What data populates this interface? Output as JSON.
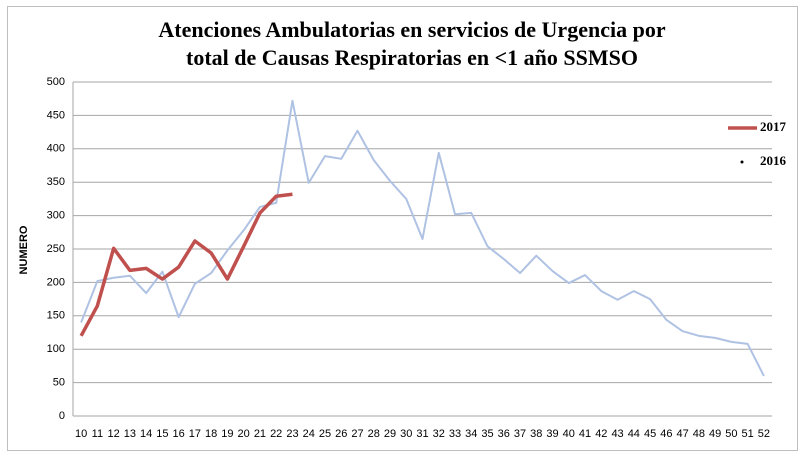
{
  "chart_data": {
    "type": "line",
    "title": [
      "Atenciones Ambulatorias en servicios de Urgencia por",
      "total de Causas Respiratorias en <1 año   SSMSO"
    ],
    "y_label": "NUMERO",
    "categories": [
      "10",
      "11",
      "12",
      "13",
      "14",
      "15",
      "16",
      "17",
      "18",
      "19",
      "20",
      "21",
      "22",
      "23",
      "24",
      "25",
      "26",
      "27",
      "28",
      "29",
      "30",
      "31",
      "32",
      "33",
      "34",
      "35",
      "36",
      "37",
      "38",
      "39",
      "40",
      "41",
      "42",
      "43",
      "44",
      "45",
      "46",
      "47",
      "48",
      "49",
      "50",
      "51",
      "52"
    ],
    "series": [
      {
        "name": "2017",
        "color": "#c0504d",
        "values": [
          120,
          165,
          251,
          218,
          221,
          205,
          223,
          262,
          244,
          205,
          254,
          304,
          329,
          332,
          null,
          null,
          null,
          null,
          null,
          null,
          null,
          null,
          null,
          null,
          null,
          null,
          null,
          null,
          null,
          null,
          null,
          null,
          null,
          null,
          null,
          null,
          null,
          null,
          null,
          null,
          null,
          null,
          null
        ]
      },
      {
        "name": "2016",
        "color": "#afc2e3",
        "values": [
          140,
          202,
          207,
          210,
          184,
          216,
          148,
          198,
          214,
          248,
          278,
          313,
          319,
          472,
          349,
          389,
          385,
          427,
          383,
          352,
          325,
          265,
          394,
          302,
          304,
          254,
          235,
          214,
          240,
          217,
          199,
          211,
          187,
          174,
          187,
          175,
          144,
          127,
          120,
          117,
          111,
          108,
          60
        ]
      }
    ],
    "ylim": [
      0,
      500
    ],
    "yticks": [
      0,
      50,
      100,
      150,
      200,
      250,
      300,
      350,
      400,
      450,
      500
    ],
    "grid": true
  }
}
